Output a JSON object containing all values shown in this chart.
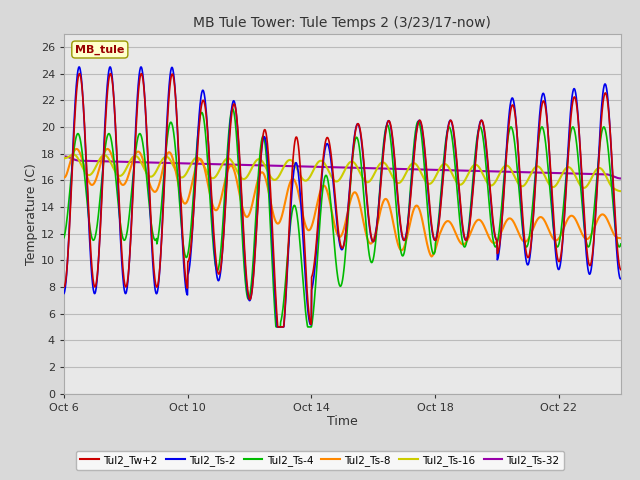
{
  "title": "MB Tule Tower: Tule Temps 2 (3/23/17-now)",
  "xlabel": "Time",
  "ylabel": "Temperature (C)",
  "background_color": "#d9d9d9",
  "plot_bg_color": "#e8e8e8",
  "ylim": [
    0,
    27
  ],
  "yticks": [
    0,
    2,
    4,
    6,
    8,
    10,
    12,
    14,
    16,
    18,
    20,
    22,
    24,
    26
  ],
  "legend_label": "MB_tule",
  "series": {
    "Tul2_Tw+2": {
      "color": "#cc0000",
      "lw": 1.2
    },
    "Tul2_Ts-2": {
      "color": "#0000ee",
      "lw": 1.2
    },
    "Tul2_Ts-4": {
      "color": "#00bb00",
      "lw": 1.2
    },
    "Tul2_Ts-8": {
      "color": "#ff8800",
      "lw": 1.5
    },
    "Tul2_Ts-16": {
      "color": "#cccc00",
      "lw": 1.5
    },
    "Tul2_Ts-32": {
      "color": "#9900aa",
      "lw": 1.5
    }
  },
  "x_tick_labels": [
    "Oct 6",
    "Oct 10",
    "Oct 14",
    "Oct 18",
    "Oct 22"
  ],
  "x_tick_positions": [
    0,
    4,
    8,
    12,
    16
  ],
  "total_days": 18
}
